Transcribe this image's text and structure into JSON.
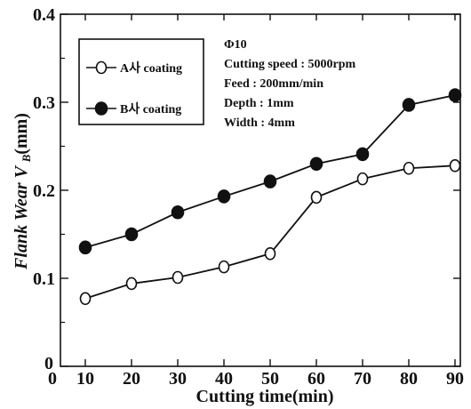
{
  "chart_data": {
    "type": "line",
    "x": [
      10,
      20,
      30,
      40,
      50,
      60,
      70,
      80,
      90
    ],
    "series": [
      {
        "name": "A사 coating",
        "values": [
          0.077,
          0.094,
          0.101,
          0.113,
          0.128,
          0.192,
          0.213,
          0.225,
          0.228
        ],
        "marker": "open-circle"
      },
      {
        "name": "B사 coating",
        "values": [
          0.135,
          0.15,
          0.175,
          0.193,
          0.21,
          0.23,
          0.241,
          0.297,
          0.308
        ],
        "marker": "filled-circle"
      }
    ],
    "xlabel": "Cutting time(min)",
    "ylabel_main": "Flank Wear V",
    "ylabel_sub": "B",
    "ylabel_unit": "(mm)",
    "xlim": [
      0,
      90
    ],
    "ylim": [
      0,
      0.4
    ],
    "xticks": [
      "10",
      "20",
      "30",
      "40",
      "50",
      "60",
      "70",
      "80",
      "90"
    ],
    "origin_label": "0",
    "yticks": [
      {
        "value": 0,
        "label": "0"
      },
      {
        "value": 0.1,
        "label": "0.1"
      },
      {
        "value": 0.2,
        "label": "0.2"
      },
      {
        "value": 0.3,
        "label": "0.3"
      },
      {
        "value": 0.4,
        "label": "0.4"
      }
    ],
    "grid": false,
    "legend_position": "top-left",
    "annotations": [
      "Φ10",
      "Cutting speed : 5000rpm",
      "Feed : 200mm/min",
      "Depth : 1mm",
      "Width : 4mm"
    ],
    "colors": {
      "line": "#111111",
      "axis": "#111111"
    }
  }
}
